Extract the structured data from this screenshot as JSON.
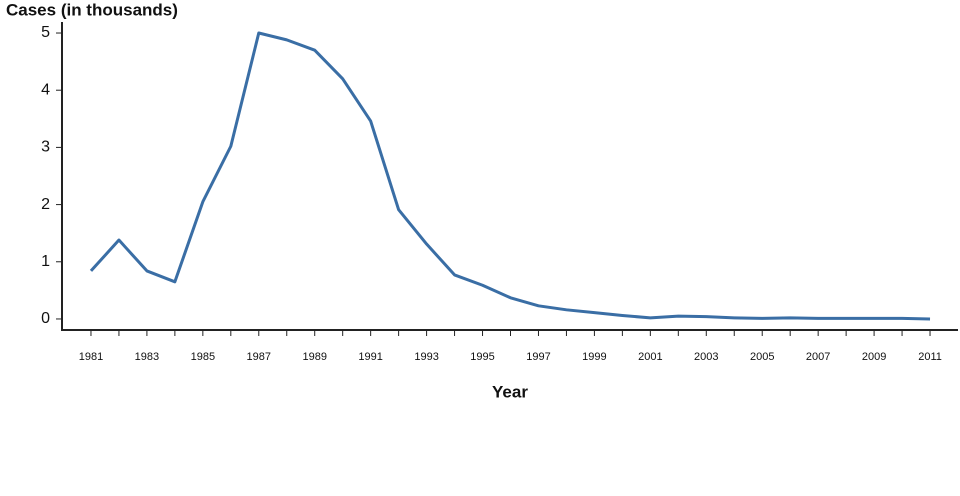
{
  "chart_data": {
    "type": "line",
    "ylabel": "Cases (in thousands)",
    "xlabel": "Year",
    "x": [
      1981,
      1982,
      1983,
      1984,
      1985,
      1986,
      1987,
      1988,
      1989,
      1990,
      1991,
      1992,
      1993,
      1994,
      1995,
      1996,
      1997,
      1998,
      1999,
      2000,
      2001,
      2002,
      2003,
      2004,
      2005,
      2006,
      2007,
      2008,
      2009,
      2010,
      2011
    ],
    "values": [
      0.84,
      1.38,
      0.84,
      0.65,
      2.05,
      3.02,
      5.0,
      4.88,
      4.7,
      4.2,
      3.46,
      1.91,
      1.31,
      0.77,
      0.59,
      0.37,
      0.23,
      0.16,
      0.11,
      0.06,
      0.02,
      0.05,
      0.04,
      0.02,
      0.01,
      0.02,
      0.01,
      0.01,
      0.01,
      0.01,
      0.0
    ],
    "color": "#3a6ea5",
    "xlim": [
      1980,
      2012
    ],
    "xticks": [
      1981,
      1983,
      1985,
      1987,
      1989,
      1991,
      1993,
      1995,
      1997,
      1999,
      2001,
      2003,
      2005,
      2007,
      2009,
      2011
    ],
    "xticks_minor": [
      1982,
      1984,
      1986,
      1988,
      1990,
      1992,
      1994,
      1996,
      1998,
      2000,
      2002,
      2004,
      2006,
      2008,
      2010
    ],
    "ylim": [
      -0.2,
      5.1
    ],
    "yticks": [
      0,
      1,
      2,
      3,
      4,
      5
    ]
  }
}
